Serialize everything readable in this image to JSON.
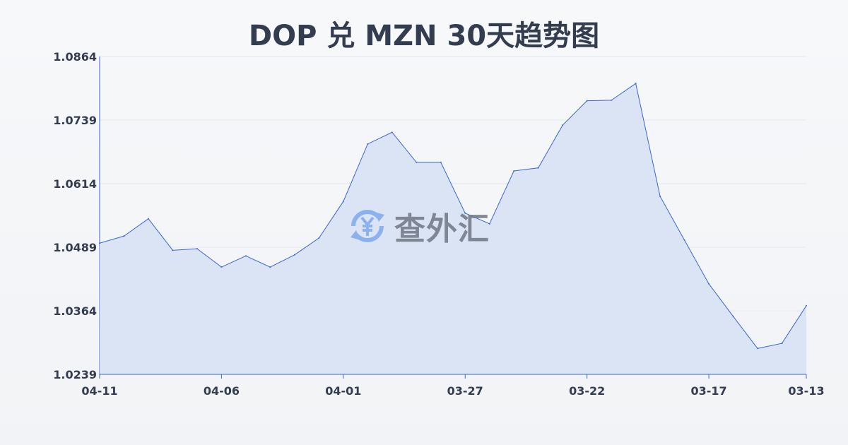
{
  "chart_data": {
    "type": "area",
    "title": "DOP 兑 MZN 30天趋势图",
    "xlabel": "",
    "ylabel": "",
    "x": [
      "04-11",
      "04-10",
      "04-09",
      "04-08",
      "04-07",
      "04-06",
      "04-05",
      "04-04",
      "04-03",
      "04-02",
      "04-01",
      "03-31",
      "03-30",
      "03-29",
      "03-28",
      "03-27",
      "03-26",
      "03-25",
      "03-24",
      "03-23",
      "03-22",
      "03-21",
      "03-20",
      "03-19",
      "03-18",
      "03-17",
      "03-16",
      "03-15",
      "03-14",
      "03-13"
    ],
    "values": [
      1.0497,
      1.0511,
      1.0545,
      1.0483,
      1.0486,
      1.045,
      1.0472,
      1.045,
      1.0474,
      1.0507,
      1.0579,
      1.0692,
      1.0715,
      1.0656,
      1.0656,
      1.0556,
      1.0535,
      1.0639,
      1.0645,
      1.0729,
      1.0777,
      1.0778,
      1.0811,
      1.0589,
      1.0503,
      1.0417,
      1.0353,
      1.029,
      1.03,
      1.0374
    ],
    "x_tick_labels": [
      "04-11",
      "04-06",
      "04-01",
      "03-27",
      "03-22",
      "03-17",
      "03-13"
    ],
    "y_tick_labels": [
      "1.0239",
      "1.0364",
      "1.0489",
      "1.0614",
      "1.0739",
      "1.0864"
    ],
    "ylim": [
      1.0239,
      1.0864
    ],
    "grid": true,
    "line_color": "#3a66d6",
    "fill_color": "#d6e0f5"
  },
  "watermark": {
    "text": "查外汇",
    "icon": "yen-exchange-icon",
    "icon_color": "#7fa9ef"
  }
}
